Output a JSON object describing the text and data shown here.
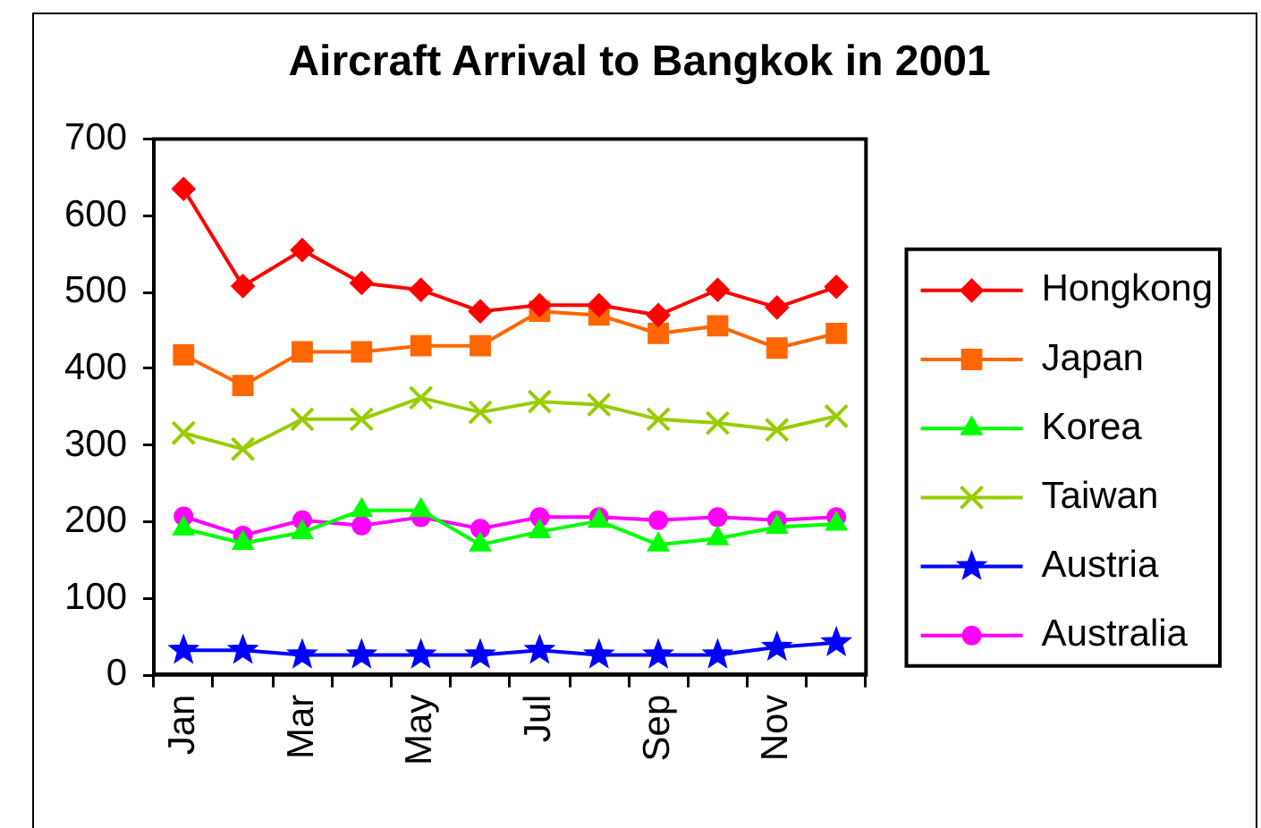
{
  "chart_data": {
    "type": "line",
    "title": "Aircraft Arrival to Bangkok in 2001",
    "categories": [
      "Jan",
      null,
      "Mar",
      null,
      "May",
      null,
      "Jul",
      null,
      "Sep",
      null,
      "Nov",
      null
    ],
    "series": [
      {
        "name": "Hongkong",
        "color": "#ff0000",
        "marker": "diamond",
        "values": [
          635,
          508,
          555,
          512,
          503,
          475,
          483,
          483,
          470,
          503,
          480,
          507
        ]
      },
      {
        "name": "Japan",
        "color": "#ff6600",
        "marker": "square",
        "values": [
          418,
          378,
          422,
          422,
          430,
          430,
          475,
          470,
          446,
          456,
          427,
          446
        ]
      },
      {
        "name": "Korea",
        "color": "#00ff00",
        "marker": "triangle",
        "values": [
          191,
          172,
          186,
          215,
          215,
          170,
          187,
          201,
          170,
          178,
          193,
          197
        ]
      },
      {
        "name": "Taiwan",
        "color": "#99cc00",
        "marker": "cross",
        "values": [
          316,
          295,
          334,
          334,
          362,
          343,
          357,
          353,
          334,
          329,
          320,
          338
        ]
      },
      {
        "name": "Austria",
        "color": "#0000ff",
        "marker": "star",
        "values": [
          32,
          32,
          26,
          26,
          26,
          26,
          32,
          26,
          26,
          26,
          36,
          42
        ]
      },
      {
        "name": "Australia",
        "color": "#ff00ff",
        "marker": "circle",
        "values": [
          207,
          182,
          202,
          195,
          206,
          191,
          206,
          206,
          202,
          206,
          202,
          206
        ]
      }
    ],
    "ylim": [
      0,
      700
    ],
    "yticks": [
      0,
      100,
      200,
      300,
      400,
      500,
      600,
      700
    ],
    "grid": false,
    "legend": "right"
  }
}
